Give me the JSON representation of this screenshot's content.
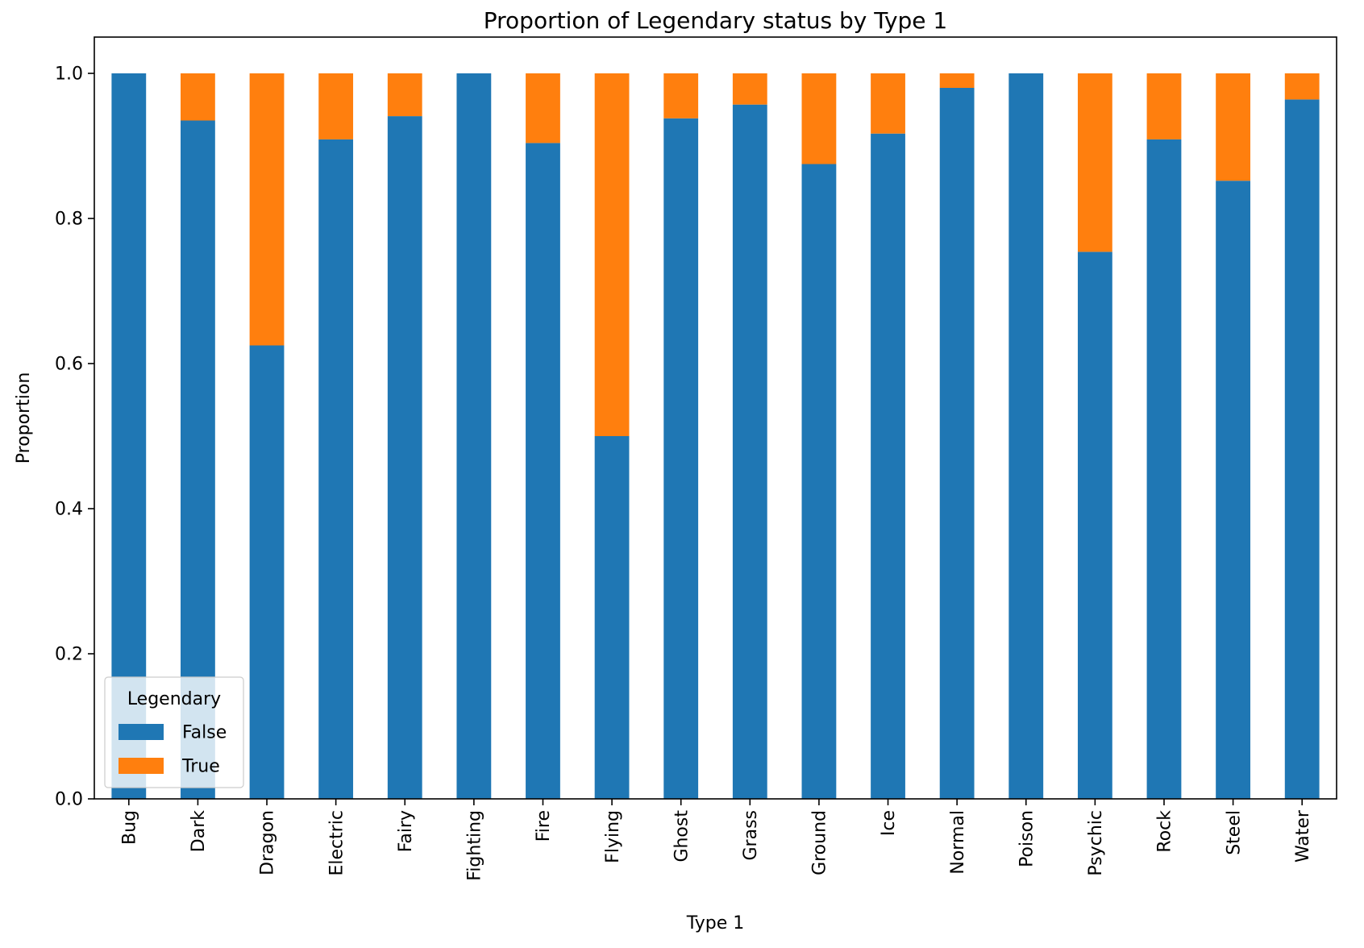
{
  "chart_data": {
    "type": "bar",
    "stacked": true,
    "title": "Proportion of Legendary status by Type 1",
    "xlabel": "Type 1",
    "ylabel": "Proportion",
    "ylim": [
      0,
      1.05
    ],
    "yticks": [
      0.0,
      0.2,
      0.4,
      0.6,
      0.8,
      1.0
    ],
    "ytick_labels": [
      "0.0",
      "0.2",
      "0.4",
      "0.6",
      "0.8",
      "1.0"
    ],
    "grid": false,
    "legend": {
      "title": "Legendary",
      "position": "lower-left"
    },
    "categories": [
      "Bug",
      "Dark",
      "Dragon",
      "Electric",
      "Fairy",
      "Fighting",
      "Fire",
      "Flying",
      "Ghost",
      "Grass",
      "Ground",
      "Ice",
      "Normal",
      "Poison",
      "Psychic",
      "Rock",
      "Steel",
      "Water"
    ],
    "series": [
      {
        "name": "False",
        "color": "#1f77b4",
        "values": [
          1.0,
          0.935,
          0.625,
          0.909,
          0.941,
          1.0,
          0.904,
          0.5,
          0.938,
          0.957,
          0.875,
          0.917,
          0.98,
          1.0,
          0.754,
          0.909,
          0.852,
          0.964
        ]
      },
      {
        "name": "True",
        "color": "#ff7f0e",
        "values": [
          0.0,
          0.065,
          0.375,
          0.091,
          0.059,
          0.0,
          0.096,
          0.5,
          0.062,
          0.043,
          0.125,
          0.083,
          0.02,
          0.0,
          0.246,
          0.091,
          0.148,
          0.036
        ]
      }
    ]
  }
}
